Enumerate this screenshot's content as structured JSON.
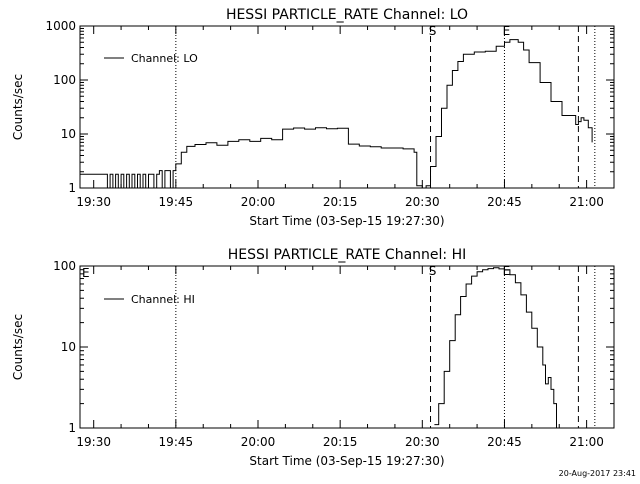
{
  "chart_data": [
    {
      "type": "line",
      "title": "HESSI PARTICLE_RATE Channel: LO",
      "xlabel": "Start Time (03-Sep-15 19:27:30)",
      "ylabel": "Counts/sec",
      "x_unit": "minutes after 19:27:30",
      "xlim": [
        0,
        97.5
      ],
      "ylim": [
        1,
        1000
      ],
      "y_scale": "log",
      "grid": false,
      "legend_position": "upper-left",
      "x_ticks": [
        {
          "label": "19:30",
          "value": 2.5
        },
        {
          "label": "19:45",
          "value": 17.5
        },
        {
          "label": "20:00",
          "value": 32.5
        },
        {
          "label": "20:15",
          "value": 47.5
        },
        {
          "label": "20:30",
          "value": 62.5
        },
        {
          "label": "20:45",
          "value": 77.5
        },
        {
          "label": "21:00",
          "value": 92.5
        }
      ],
      "y_ticks": [
        {
          "label": "1",
          "value": 1
        },
        {
          "label": "10",
          "value": 10
        },
        {
          "label": "100",
          "value": 100
        },
        {
          "label": "1000",
          "value": 1000
        }
      ],
      "markers": [
        {
          "x": 17.5,
          "style": "dotted",
          "label": ""
        },
        {
          "x": 64.0,
          "style": "dashed",
          "label": "S"
        },
        {
          "x": 77.5,
          "style": "dotted",
          "label": "E"
        },
        {
          "x": 91.0,
          "style": "dashed",
          "label": ""
        },
        {
          "x": 94.0,
          "style": "dotted",
          "label": ""
        }
      ],
      "series": [
        {
          "name": "Channel: LO",
          "x": [
            0,
            4.3,
            5,
            5.5,
            6,
            6.5,
            7,
            7.5,
            8,
            8.5,
            9,
            9.5,
            10,
            10.5,
            11,
            11.5,
            12,
            12.5,
            13,
            13.5,
            14,
            14.5,
            15,
            15.5,
            16,
            16.5,
            17,
            17.5,
            18.5,
            19.5,
            21,
            23,
            25,
            27,
            29,
            31,
            33,
            35,
            37,
            39,
            41,
            43,
            45,
            47,
            49,
            51,
            53,
            55,
            57,
            59,
            61,
            61.5,
            62.5,
            63.2,
            64,
            65,
            66,
            67,
            68,
            69,
            70,
            72,
            74,
            76,
            77.5,
            78.5,
            80,
            81,
            82,
            84,
            86,
            88,
            89.5,
            90.5,
            91,
            91.5,
            92,
            92.8,
            93.5
          ],
          "y": [
            1.8,
            1.8,
            1,
            1.8,
            1,
            1.8,
            1,
            1.8,
            1,
            1.8,
            1,
            1.8,
            1,
            1.8,
            1,
            1.8,
            1,
            1.8,
            1.8,
            1,
            1.8,
            2.1,
            1,
            2.1,
            2.1,
            1,
            2.1,
            2.8,
            4.6,
            5.9,
            6.4,
            6.9,
            6.2,
            7.3,
            7.8,
            7.3,
            8.3,
            7.8,
            12.3,
            12.9,
            12.3,
            13,
            12.5,
            12.8,
            6.5,
            6.0,
            5.8,
            5.5,
            5.5,
            5.3,
            4.6,
            1.1,
            1.0,
            1.1,
            2.5,
            9,
            30,
            80,
            150,
            220,
            300,
            330,
            340,
            420,
            500,
            560,
            500,
            360,
            210,
            90,
            40,
            22,
            22,
            15,
            17,
            20,
            18,
            13,
            7
          ]
        }
      ]
    },
    {
      "type": "line",
      "title": "HESSI PARTICLE_RATE Channel: HI",
      "xlabel": "Start Time (03-Sep-15 19:27:30)",
      "ylabel": "Counts/sec",
      "x_unit": "minutes after 19:27:30",
      "xlim": [
        0,
        97.5
      ],
      "ylim": [
        1,
        100
      ],
      "y_scale": "log",
      "grid": false,
      "legend_position": "upper-left",
      "corner_label": "E",
      "x_ticks": [
        {
          "label": "19:30",
          "value": 2.5
        },
        {
          "label": "19:45",
          "value": 17.5
        },
        {
          "label": "20:00",
          "value": 32.5
        },
        {
          "label": "20:15",
          "value": 47.5
        },
        {
          "label": "20:30",
          "value": 62.5
        },
        {
          "label": "20:45",
          "value": 77.5
        },
        {
          "label": "21:00",
          "value": 92.5
        }
      ],
      "y_ticks": [
        {
          "label": "1",
          "value": 1
        },
        {
          "label": "10",
          "value": 10
        },
        {
          "label": "100",
          "value": 100
        }
      ],
      "markers": [
        {
          "x": 17.5,
          "style": "dotted",
          "label": ""
        },
        {
          "x": 64.0,
          "style": "dashed",
          "label": "S"
        },
        {
          "x": 77.5,
          "style": "dotted",
          "label": "E"
        },
        {
          "x": 91.0,
          "style": "dashed",
          "label": ""
        },
        {
          "x": 94.0,
          "style": "dotted",
          "label": ""
        }
      ],
      "series": [
        {
          "name": "Channel: HI",
          "x": [
            64.7,
            65.5,
            66.5,
            67.5,
            68.5,
            69.5,
            70.5,
            71.5,
            72.5,
            73.5,
            74.5,
            75.5,
            76.5,
            77.5,
            78.5,
            79.5,
            80.5,
            81.5,
            82.5,
            83.5,
            84.5,
            85.0,
            85.5,
            86.0,
            86.5,
            87.0
          ],
          "y": [
            1.1,
            2,
            5,
            12,
            25,
            42,
            60,
            75,
            85,
            90,
            93,
            95,
            92,
            90,
            78,
            62,
            44,
            27,
            17,
            10,
            6,
            3.5,
            4.2,
            3.0,
            2.0,
            1.0
          ]
        }
      ]
    }
  ],
  "footer": {
    "timestamp": "20-Aug-2017 23:41"
  }
}
